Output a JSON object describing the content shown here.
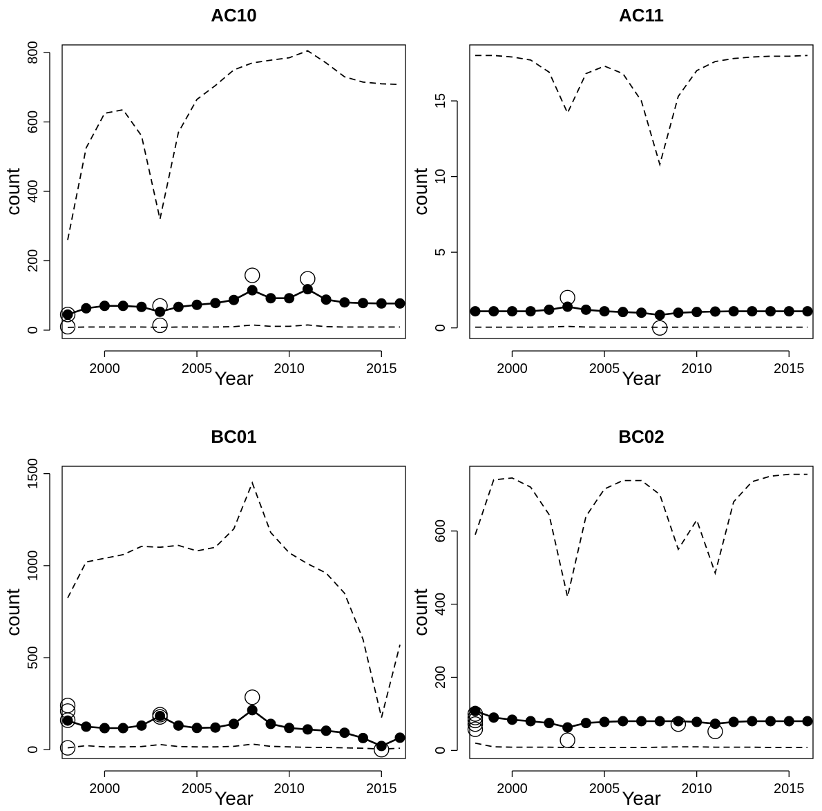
{
  "chart_data": [
    {
      "type": "line",
      "title": "AC10",
      "xlabel": "Year",
      "ylabel": "count",
      "xlim": [
        1998,
        2016
      ],
      "ylim": [
        0,
        800
      ],
      "xticks": [
        2000,
        2005,
        2010,
        2015
      ],
      "yticks": [
        0,
        200,
        400,
        600,
        800
      ],
      "x": [
        1998,
        1999,
        2000,
        2001,
        2002,
        2003,
        2004,
        2005,
        2006,
        2007,
        2008,
        2009,
        2010,
        2011,
        2012,
        2013,
        2014,
        2015,
        2016
      ],
      "series": [
        {
          "role": "estimate",
          "style": "solid line, filled circles",
          "values": [
            45,
            63,
            70,
            70,
            67,
            53,
            67,
            73,
            78,
            87,
            115,
            92,
            92,
            118,
            88,
            80,
            78,
            77,
            77
          ]
        },
        {
          "role": "upper bound",
          "style": "dashed line",
          "values": [
            260,
            525,
            625,
            635,
            560,
            320,
            570,
            665,
            705,
            750,
            770,
            778,
            785,
            805,
            770,
            730,
            715,
            710,
            708
          ]
        },
        {
          "role": "lower bound",
          "style": "dashed line",
          "values": [
            8,
            9,
            9,
            9,
            9,
            8,
            9,
            9,
            9,
            10,
            15,
            11,
            11,
            15,
            10,
            9,
            9,
            9,
            9
          ]
        },
        {
          "role": "observed",
          "style": "open circles",
          "points": [
            [
              1998,
              45
            ],
            [
              1998,
              10
            ],
            [
              2003,
              70
            ],
            [
              2003,
              14
            ],
            [
              2008,
              158
            ],
            [
              2011,
              148
            ]
          ]
        }
      ]
    },
    {
      "type": "line",
      "title": "AC11",
      "xlabel": "Year",
      "ylabel": "count",
      "xlim": [
        1998,
        2016
      ],
      "ylim": [
        0,
        18
      ],
      "xticks": [
        2000,
        2005,
        2010,
        2015
      ],
      "yticks": [
        0,
        5,
        10,
        15
      ],
      "x": [
        1998,
        1999,
        2000,
        2001,
        2002,
        2003,
        2004,
        2005,
        2006,
        2007,
        2008,
        2009,
        2010,
        2011,
        2012,
        2013,
        2014,
        2015,
        2016
      ],
      "series": [
        {
          "role": "estimate",
          "style": "solid line, filled circles",
          "values": [
            1.1,
            1.1,
            1.1,
            1.1,
            1.2,
            1.4,
            1.2,
            1.1,
            1.05,
            1.0,
            0.85,
            1.0,
            1.05,
            1.08,
            1.1,
            1.1,
            1.1,
            1.1,
            1.1
          ]
        },
        {
          "role": "upper bound",
          "style": "dashed line",
          "values": [
            18.0,
            18.0,
            17.9,
            17.7,
            16.9,
            14.2,
            16.8,
            17.3,
            16.8,
            15.0,
            10.8,
            15.3,
            17.0,
            17.6,
            17.8,
            17.9,
            17.95,
            17.95,
            18.0
          ]
        },
        {
          "role": "lower bound",
          "style": "dashed line",
          "values": [
            0.05,
            0.05,
            0.05,
            0.05,
            0.06,
            0.1,
            0.06,
            0.05,
            0.05,
            0.05,
            0.04,
            0.05,
            0.05,
            0.05,
            0.05,
            0.05,
            0.05,
            0.05,
            0.05
          ]
        },
        {
          "role": "observed",
          "style": "open circles",
          "points": [
            [
              2003,
              2
            ],
            [
              2008,
              0
            ]
          ]
        }
      ]
    },
    {
      "type": "line",
      "title": "BC01",
      "xlabel": "Year",
      "ylabel": "count",
      "xlim": [
        1998,
        2016
      ],
      "ylim": [
        0,
        1500
      ],
      "xticks": [
        2000,
        2005,
        2010,
        2015
      ],
      "yticks": [
        0,
        500,
        1000,
        1500
      ],
      "x": [
        1998,
        1999,
        2000,
        2001,
        2002,
        2003,
        2004,
        2005,
        2006,
        2007,
        2008,
        2009,
        2010,
        2011,
        2012,
        2013,
        2014,
        2015,
        2016
      ],
      "series": [
        {
          "role": "estimate",
          "style": "solid line, filled circles",
          "values": [
            158,
            125,
            117,
            117,
            131,
            183,
            131,
            118,
            120,
            140,
            215,
            140,
            118,
            110,
            103,
            92,
            63,
            20,
            65
          ]
        },
        {
          "role": "upper bound",
          "style": "dashed line",
          "values": [
            825,
            1020,
            1040,
            1060,
            1105,
            1100,
            1110,
            1080,
            1100,
            1200,
            1450,
            1180,
            1070,
            1010,
            960,
            850,
            600,
            175,
            570
          ]
        },
        {
          "role": "lower bound",
          "style": "dashed line",
          "values": [
            10,
            22,
            15,
            15,
            17,
            28,
            17,
            15,
            15,
            18,
            30,
            18,
            15,
            13,
            12,
            10,
            8,
            3,
            8
          ]
        },
        {
          "role": "observed",
          "style": "open circles",
          "points": [
            [
              1998,
              240
            ],
            [
              1998,
              210
            ],
            [
              1998,
              160
            ],
            [
              1998,
              10
            ],
            [
              2003,
              190
            ],
            [
              2003,
              178
            ],
            [
              2008,
              285
            ],
            [
              2015,
              0
            ]
          ]
        }
      ]
    },
    {
      "type": "line",
      "title": "BC02",
      "xlabel": "Year",
      "ylabel": "count",
      "xlim": [
        1998,
        2016
      ],
      "ylim": [
        0,
        750
      ],
      "xticks": [
        2000,
        2005,
        2010,
        2015
      ],
      "yticks": [
        0,
        200,
        400,
        600
      ],
      "x": [
        1998,
        1999,
        2000,
        2001,
        2002,
        2003,
        2004,
        2005,
        2006,
        2007,
        2008,
        2009,
        2010,
        2011,
        2012,
        2013,
        2014,
        2015,
        2016
      ],
      "series": [
        {
          "role": "estimate",
          "style": "solid line, filled circles",
          "values": [
            108,
            90,
            84,
            80,
            75,
            63,
            75,
            78,
            80,
            80,
            80,
            80,
            78,
            73,
            78,
            80,
            80,
            80,
            80
          ]
        },
        {
          "role": "upper bound",
          "style": "dashed line",
          "values": [
            590,
            740,
            745,
            720,
            645,
            420,
            640,
            715,
            738,
            738,
            700,
            550,
            630,
            485,
            680,
            735,
            750,
            755,
            755
          ]
        },
        {
          "role": "lower bound",
          "style": "dashed line",
          "values": [
            20,
            10,
            9,
            9,
            9,
            8,
            8,
            8,
            8,
            8,
            9,
            10,
            10,
            9,
            9,
            9,
            8,
            8,
            8
          ]
        },
        {
          "role": "observed",
          "style": "open circles",
          "points": [
            [
              1998,
              100
            ],
            [
              1998,
              90
            ],
            [
              1998,
              82
            ],
            [
              1998,
              72
            ],
            [
              1998,
              58
            ],
            [
              2003,
              28
            ],
            [
              2009,
              72
            ],
            [
              2011,
              52
            ]
          ]
        }
      ]
    }
  ]
}
